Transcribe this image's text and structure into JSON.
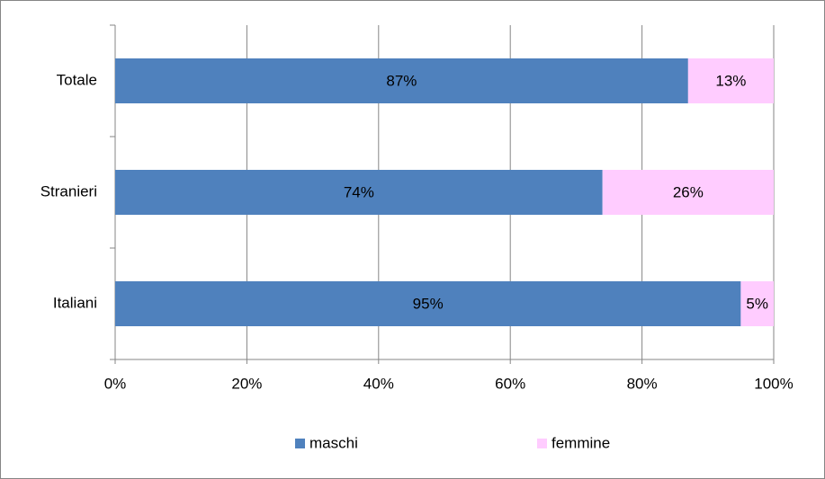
{
  "chart_data": {
    "type": "stacked-bar-horizontal",
    "categories": [
      "Totale",
      "Stranieri",
      "Italiani"
    ],
    "series": [
      {
        "name": "maschi",
        "color": "#4f81bd",
        "values": [
          87,
          74,
          95
        ],
        "value_labels": [
          "87%",
          "74%",
          "95%"
        ]
      },
      {
        "name": "femmine",
        "color": "#ffccff",
        "values": [
          13,
          26,
          5
        ],
        "value_labels": [
          "13%",
          "26%",
          "5%"
        ]
      }
    ],
    "xlim": [
      0,
      100
    ],
    "xticks": [
      {
        "value": 0,
        "label": "0%"
      },
      {
        "value": 20,
        "label": "20%"
      },
      {
        "value": 40,
        "label": "40%"
      },
      {
        "value": 60,
        "label": "60%"
      },
      {
        "value": 80,
        "label": "80%"
      },
      {
        "value": 100,
        "label": "100%"
      }
    ],
    "grid": true,
    "legend": "bottom"
  }
}
